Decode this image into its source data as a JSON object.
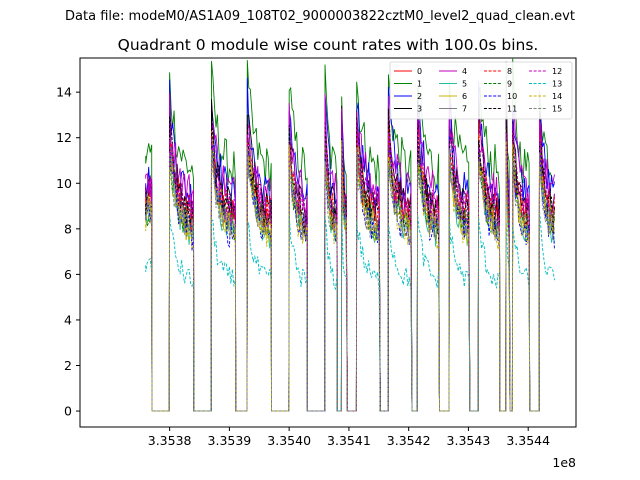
{
  "figure": {
    "suptitle": "Data file: modeM0/AS1A09_108T02_9000003822cztM0_level2_quad_clean.evt",
    "background": "#ffffff"
  },
  "chart_data": {
    "type": "line",
    "title": "Quadrant 0 module wise count rates with 100.0s bins.",
    "xlabel": "",
    "ylabel": "",
    "x_offset_label": "1e8",
    "xlim": [
      3.35365,
      3.35448
    ],
    "ylim": [
      -0.7,
      15.5
    ],
    "x_ticks": [
      3.3538,
      3.3539,
      3.354,
      3.3541,
      3.3542,
      3.3543,
      3.3544
    ],
    "x_tick_labels": [
      "3.3538",
      "3.3539",
      "3.3540",
      "3.3541",
      "3.3542",
      "3.3543",
      "3.3544"
    ],
    "y_ticks": [
      0,
      2,
      4,
      6,
      8,
      10,
      12,
      14
    ],
    "y_tick_labels": [
      "0",
      "2",
      "4",
      "6",
      "8",
      "10",
      "12",
      "14"
    ],
    "grid": false,
    "legend_position": "top-right",
    "legend_columns": 4,
    "segments": [
      {
        "start": 3.35376,
        "end": 3.35377
      },
      {
        "start": 3.3538,
        "end": 3.35384
      },
      {
        "start": 3.35387,
        "end": 3.35391
      },
      {
        "start": 3.35393,
        "end": 3.35397
      },
      {
        "start": 3.354,
        "end": 3.35403
      },
      {
        "start": 3.35406,
        "end": 3.35408
      },
      {
        "start": 3.354088,
        "end": 3.354097
      },
      {
        "start": 3.354113,
        "end": 3.354152
      },
      {
        "start": 3.354166,
        "end": 3.354205
      },
      {
        "start": 3.354215,
        "end": 3.354251
      },
      {
        "start": 3.354268,
        "end": 3.354302
      },
      {
        "start": 3.354317,
        "end": 3.354352
      },
      {
        "start": 3.354363,
        "end": 3.354369
      },
      {
        "start": 3.354374,
        "end": 3.354402
      },
      {
        "start": 3.354419,
        "end": 3.354446
      }
    ],
    "series": [
      {
        "name": "0",
        "color": "#ff0000",
        "dash": "solid",
        "level": 8.3,
        "peak": 11.6,
        "noise": 0.8
      },
      {
        "name": "1",
        "color": "#008000",
        "dash": "solid",
        "level": 10.4,
        "peak": 14.5,
        "noise": 1.0
      },
      {
        "name": "2",
        "color": "#0000ff",
        "dash": "solid",
        "level": 9.2,
        "peak": 13.8,
        "noise": 0.9
      },
      {
        "name": "3",
        "color": "#000000",
        "dash": "solid",
        "level": 8.6,
        "peak": 13.0,
        "noise": 0.8
      },
      {
        "name": "4",
        "color": "#bf00bf",
        "dash": "solid",
        "level": 9.4,
        "peak": 13.2,
        "noise": 0.9
      },
      {
        "name": "5",
        "color": "#20c0a0",
        "dash": "solid",
        "level": 7.6,
        "peak": 11.6,
        "noise": 0.7
      },
      {
        "name": "6",
        "color": "#c8b400",
        "dash": "solid",
        "level": 7.9,
        "peak": 11.8,
        "noise": 0.7
      },
      {
        "name": "7",
        "color": "#808080",
        "dash": "solid",
        "level": 8.0,
        "peak": 11.4,
        "noise": 0.7
      },
      {
        "name": "8",
        "color": "#ff0000",
        "dash": "dashed",
        "level": 8.5,
        "peak": 12.0,
        "noise": 0.8
      },
      {
        "name": "9",
        "color": "#008000",
        "dash": "dashed",
        "level": 7.9,
        "peak": 11.4,
        "noise": 0.7
      },
      {
        "name": "10",
        "color": "#0000ff",
        "dash": "dashed",
        "level": 7.6,
        "peak": 11.8,
        "noise": 0.8
      },
      {
        "name": "11",
        "color": "#000000",
        "dash": "dashed",
        "level": 8.3,
        "peak": 12.5,
        "noise": 0.8
      },
      {
        "name": "12",
        "color": "#bf00bf",
        "dash": "dashed",
        "level": 8.6,
        "peak": 12.2,
        "noise": 0.8
      },
      {
        "name": "13",
        "color": "#00bfbf",
        "dash": "dashed",
        "level": 5.6,
        "peak": 8.4,
        "noise": 0.5
      },
      {
        "name": "14",
        "color": "#c8b400",
        "dash": "dashed",
        "level": 7.6,
        "peak": 11.2,
        "noise": 0.7
      },
      {
        "name": "15",
        "color": "#808080",
        "dash": "dashed",
        "level": 7.8,
        "peak": 11.0,
        "noise": 0.7
      }
    ]
  }
}
